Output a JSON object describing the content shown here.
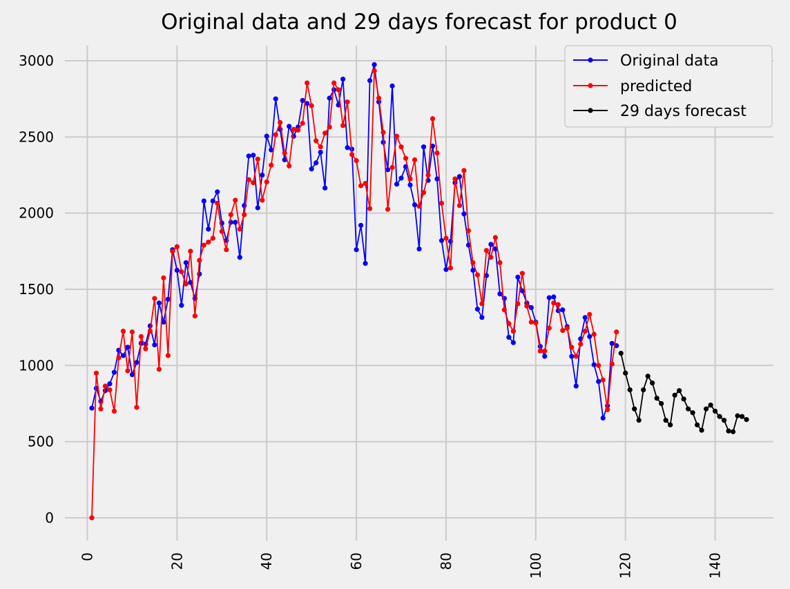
{
  "colors": {
    "background": "#f0f0f0",
    "grid": "#cbcbcb",
    "original": "#0000ff",
    "predicted": "#ff0000",
    "forecast": "#000000"
  },
  "chart_data": {
    "type": "line",
    "title": "Original data and 29 days forecast for product 0",
    "xlabel": "",
    "ylabel": "",
    "xlim": [
      -5,
      153
    ],
    "ylim": [
      -150,
      3100
    ],
    "grid": true,
    "legend_position": "top-right",
    "x_ticks": [
      0,
      20,
      40,
      60,
      80,
      100,
      120,
      140
    ],
    "x_tick_labels": [
      "0",
      "20",
      "40",
      "60",
      "80",
      "100",
      "120",
      "140"
    ],
    "y_ticks": [
      0,
      500,
      1000,
      1500,
      2000,
      2500,
      3000
    ],
    "y_tick_labels": [
      "0",
      "500",
      "1000",
      "1500",
      "2000",
      "2500",
      "3000"
    ],
    "series": [
      {
        "name": "Original data",
        "color": "#0000ff",
        "x_start": 1,
        "values": [
          720,
          850,
          765,
          835,
          880,
          955,
          1100,
          1065,
          1120,
          940,
          1020,
          1145,
          1140,
          1260,
          1135,
          1410,
          1285,
          1435,
          1760,
          1625,
          1395,
          1675,
          1545,
          1440,
          1600,
          2080,
          1895,
          2080,
          2140,
          1935,
          1820,
          1940,
          1940,
          1710,
          2050,
          2375,
          2380,
          2035,
          2250,
          2505,
          2415,
          2750,
          2550,
          2350,
          2570,
          2505,
          2565,
          2740,
          2720,
          2290,
          2330,
          2400,
          2165,
          2755,
          2810,
          2710,
          2880,
          2430,
          2420,
          1760,
          1920,
          1670,
          2870,
          2975,
          2730,
          2465,
          2285,
          2835,
          2190,
          2230,
          2305,
          2185,
          2055,
          1765,
          2435,
          2215,
          2440,
          2225,
          1820,
          1630,
          1815,
          2200,
          2240,
          1995,
          1790,
          1625,
          1370,
          1315,
          1590,
          1795,
          1765,
          1470,
          1440,
          1185,
          1150,
          1580,
          1490,
          1410,
          1380,
          1285,
          1125,
          1060,
          1445,
          1450,
          1360,
          1365,
          1255,
          1060,
          865,
          1175,
          1315,
          1190,
          1005,
          895,
          655,
          735,
          1145,
          1130
        ]
      },
      {
        "name": "predicted",
        "color": "#ff0000",
        "x_start": 1,
        "values": [
          0,
          950,
          715,
          865,
          840,
          700,
          1050,
          1225,
          965,
          1220,
          725,
          1190,
          1110,
          1225,
          1440,
          975,
          1575,
          1065,
          1750,
          1780,
          1615,
          1535,
          1750,
          1325,
          1690,
          1790,
          1810,
          1835,
          2065,
          1880,
          1760,
          1990,
          2085,
          1895,
          1990,
          2220,
          2200,
          2355,
          2085,
          2205,
          2315,
          2515,
          2595,
          2395,
          2310,
          2550,
          2545,
          2590,
          2855,
          2705,
          2475,
          2435,
          2525,
          2565,
          2855,
          2810,
          2575,
          2730,
          2385,
          2345,
          2180,
          2195,
          2030,
          2935,
          2755,
          2530,
          2025,
          2300,
          2505,
          2435,
          2360,
          2225,
          2350,
          2045,
          2135,
          2250,
          2620,
          2395,
          2065,
          1835,
          1640,
          2225,
          2050,
          2280,
          1885,
          1675,
          1595,
          1405,
          1755,
          1710,
          1840,
          1675,
          1365,
          1275,
          1225,
          1405,
          1605,
          1390,
          1285,
          1280,
          1095,
          1095,
          1245,
          1410,
          1400,
          1230,
          1245,
          1120,
          1060,
          1140,
          1225,
          1335,
          1205,
          1000,
          905,
          710,
          1010,
          1220
        ]
      },
      {
        "name": "29 days forecast",
        "color": "#000000",
        "x_start": 119,
        "values": [
          1080,
          950,
          840,
          715,
          640,
          840,
          930,
          885,
          785,
          750,
          640,
          610,
          805,
          835,
          780,
          715,
          690,
          610,
          575,
          715,
          740,
          700,
          665,
          640,
          570,
          565,
          670,
          665,
          645
        ]
      }
    ]
  }
}
